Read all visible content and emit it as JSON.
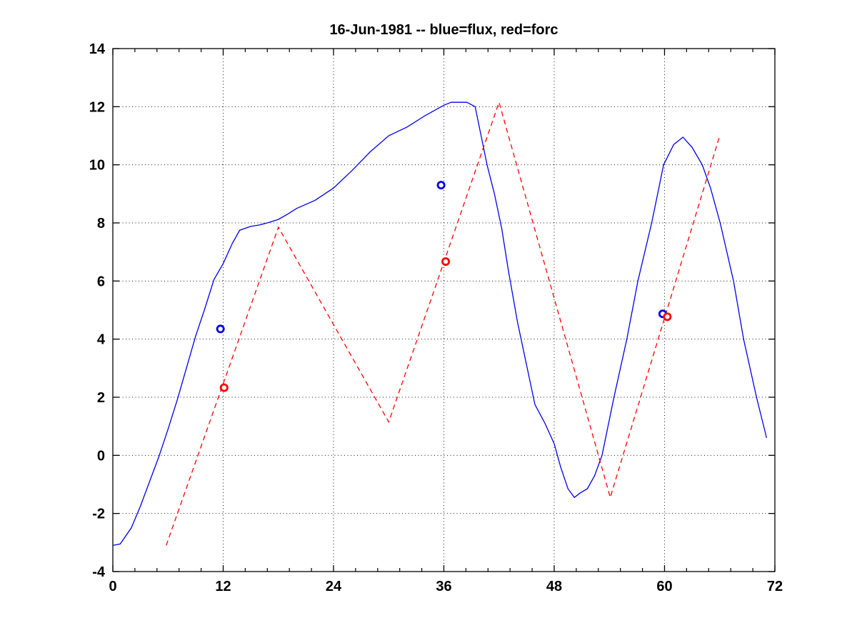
{
  "page": {
    "background": "#ffffff"
  },
  "chart_data": {
    "type": "line",
    "title": "16-Jun-1981 -- blue=flux, red=forc",
    "xlabel": "",
    "ylabel": "",
    "xlim": [
      0,
      72
    ],
    "ylim": [
      -4,
      14
    ],
    "x_ticks": [
      0,
      12,
      24,
      36,
      48,
      60,
      72
    ],
    "y_ticks": [
      -4,
      -2,
      0,
      2,
      4,
      6,
      8,
      10,
      12,
      14
    ],
    "x_minor_tick_step": 2.4,
    "grid": "dotted at major ticks, both axes",
    "legend": {
      "blue": "flux",
      "red": "forc",
      "position": "in-title"
    },
    "colors": {
      "flux": "#0000ee",
      "forc": "#ff0000",
      "axis": "#000000",
      "grid": "#1a1a1a"
    },
    "series": [
      {
        "name": "flux",
        "type": "line",
        "style": "solid",
        "color": "#0000ee",
        "points": [
          [
            0,
            -3.1
          ],
          [
            0.8,
            -3.05
          ],
          [
            2,
            -2.5
          ],
          [
            3,
            -1.75
          ],
          [
            4,
            -0.9
          ],
          [
            5,
            -0.05
          ],
          [
            6,
            0.9
          ],
          [
            7,
            1.9
          ],
          [
            8,
            3.0
          ],
          [
            9,
            4.1
          ],
          [
            10,
            5.05
          ],
          [
            11,
            6.05
          ],
          [
            12,
            6.6
          ],
          [
            13,
            7.3
          ],
          [
            13.8,
            7.75
          ],
          [
            15,
            7.88
          ],
          [
            16,
            7.93
          ],
          [
            17,
            8.02
          ],
          [
            18,
            8.12
          ],
          [
            19,
            8.3
          ],
          [
            20,
            8.5
          ],
          [
            22,
            8.78
          ],
          [
            24,
            9.2
          ],
          [
            26,
            9.8
          ],
          [
            28,
            10.45
          ],
          [
            30,
            11.0
          ],
          [
            32,
            11.3
          ],
          [
            34,
            11.7
          ],
          [
            36,
            12.05
          ],
          [
            36.8,
            12.15
          ],
          [
            38.5,
            12.15
          ],
          [
            39.4,
            12.0
          ],
          [
            40.7,
            10.0
          ],
          [
            41.5,
            9.0
          ],
          [
            42.3,
            7.8
          ],
          [
            43,
            6.4
          ],
          [
            44,
            4.6
          ],
          [
            45,
            3.1
          ],
          [
            45.9,
            1.75
          ],
          [
            47,
            1.1
          ],
          [
            48,
            0.4
          ],
          [
            48.7,
            -0.4
          ],
          [
            49.5,
            -1.15
          ],
          [
            50.2,
            -1.45
          ],
          [
            50.8,
            -1.3
          ],
          [
            51.6,
            -1.15
          ],
          [
            52.4,
            -0.7
          ],
          [
            53.2,
            0.0
          ],
          [
            54.5,
            2.0
          ],
          [
            55.9,
            4.0
          ],
          [
            57.1,
            6.0
          ],
          [
            58.6,
            8.0
          ],
          [
            59.9,
            10.0
          ],
          [
            61,
            10.7
          ],
          [
            62,
            10.95
          ],
          [
            63,
            10.6
          ],
          [
            64.1,
            10.0
          ],
          [
            65,
            9.2
          ],
          [
            66.05,
            8.0
          ],
          [
            67.5,
            6.0
          ],
          [
            68.6,
            4.0
          ],
          [
            70,
            2.0
          ],
          [
            71.1,
            0.6
          ]
        ]
      },
      {
        "name": "forc",
        "type": "line",
        "style": "dashed",
        "color": "#ff0000",
        "points": [
          [
            5.8,
            -3.1
          ],
          [
            18,
            7.85
          ],
          [
            30,
            1.15
          ],
          [
            42,
            12.15
          ],
          [
            54.1,
            -1.45
          ],
          [
            66,
            11.0
          ]
        ]
      },
      {
        "name": "flux-markers",
        "type": "scatter",
        "marker": "circle-open",
        "color": "#0000ee",
        "points": [
          [
            11.7,
            4.35
          ],
          [
            35.7,
            9.3
          ],
          [
            59.8,
            4.87
          ]
        ]
      },
      {
        "name": "forc-markers",
        "type": "scatter",
        "marker": "circle-open",
        "color": "#ff0000",
        "points": [
          [
            12.1,
            2.33
          ],
          [
            36.2,
            6.67
          ],
          [
            60.3,
            4.77
          ]
        ]
      }
    ]
  }
}
